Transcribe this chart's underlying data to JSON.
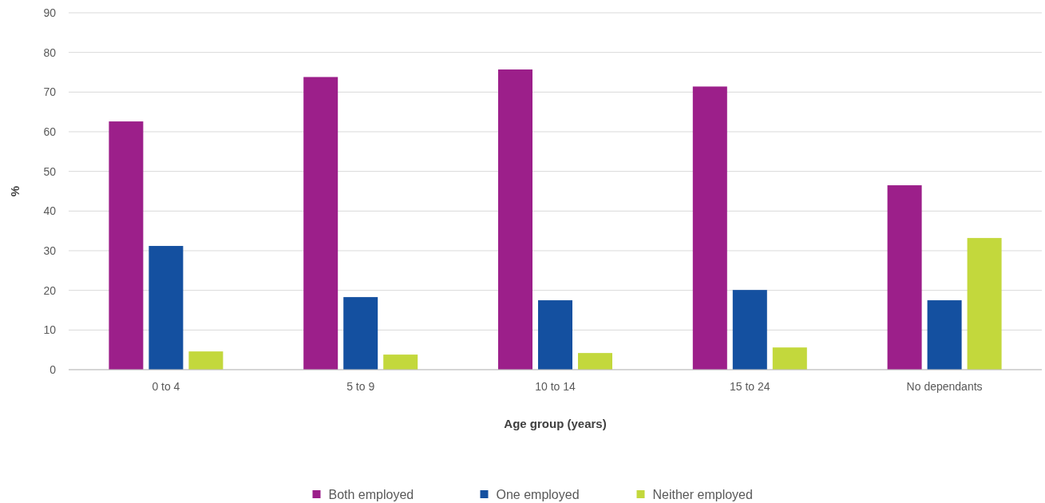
{
  "chart_data": {
    "type": "bar",
    "xlabel": "Age group (years)",
    "ylabel": "%",
    "categories": [
      "0 to 4",
      "5 to 9",
      "10 to 14",
      "15 to 24",
      "No dependants"
    ],
    "series": [
      {
        "name": "Both employed",
        "color": "#9c1f8a",
        "values": [
          62.6,
          73.8,
          75.7,
          71.4,
          46.5
        ]
      },
      {
        "name": "One employed",
        "color": "#1450a0",
        "values": [
          31.2,
          18.3,
          17.5,
          20.1,
          17.5
        ]
      },
      {
        "name": "Neither employed",
        "color": "#c3d83c",
        "values": [
          4.6,
          3.8,
          4.2,
          5.6,
          33.2
        ]
      }
    ],
    "ylim": [
      0,
      90
    ],
    "yticks": [
      0,
      10,
      20,
      30,
      40,
      50,
      60,
      70,
      80,
      90
    ],
    "grid": "y",
    "legend": "bottom"
  }
}
